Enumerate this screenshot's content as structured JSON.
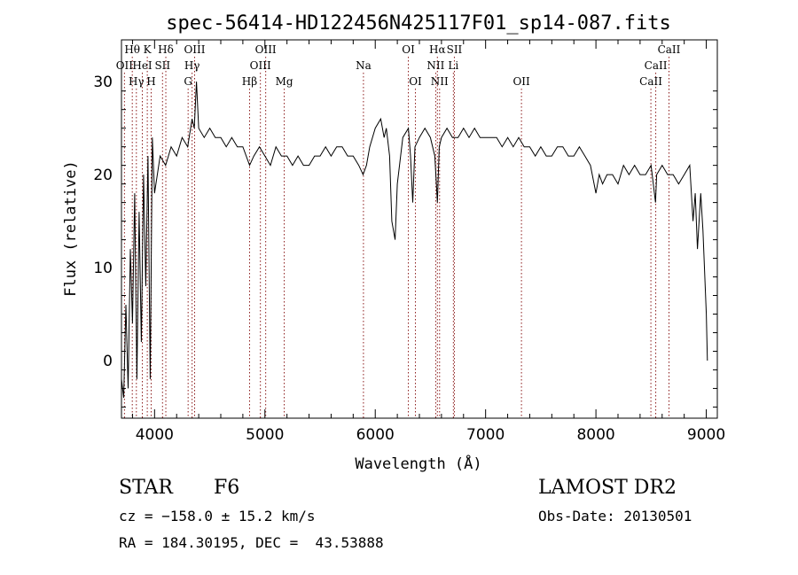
{
  "chart_data": {
    "type": "line",
    "title": "spec-56414-HD122456N425117F01_sp14-087.fits",
    "xlabel": "Wavelength (Å)",
    "ylabel": "Flux (relative)",
    "xlim": [
      3700,
      9100
    ],
    "ylim": [
      -6.2,
      34.5
    ],
    "xticks": [
      4000,
      5000,
      6000,
      7000,
      8000,
      9000
    ],
    "yticks": [
      0,
      10,
      20,
      30
    ],
    "grid": false,
    "series": [
      {
        "x": [
          3700,
          3720,
          3740,
          3760,
          3780,
          3800,
          3820,
          3840,
          3860,
          3880,
          3900,
          3920,
          3940,
          3960,
          3980,
          4000,
          4050,
          4100,
          4150,
          4200,
          4250,
          4300,
          4340,
          4360,
          4380,
          4400,
          4450,
          4500,
          4550,
          4600,
          4650,
          4700,
          4750,
          4800,
          4861,
          4900,
          4950,
          5000,
          5050,
          5100,
          5150,
          5200,
          5250,
          5300,
          5350,
          5400,
          5450,
          5500,
          5550,
          5600,
          5650,
          5700,
          5750,
          5800,
          5850,
          5890,
          5920,
          5950,
          6000,
          6050,
          6080,
          6100,
          6130,
          6150,
          6180,
          6200,
          6250,
          6300,
          6320,
          6340,
          6360,
          6400,
          6450,
          6500,
          6540,
          6563,
          6580,
          6600,
          6650,
          6700,
          6750,
          6800,
          6850,
          6900,
          6950,
          7000,
          7050,
          7100,
          7150,
          7200,
          7250,
          7300,
          7350,
          7400,
          7450,
          7500,
          7550,
          7600,
          7650,
          7700,
          7750,
          7800,
          7850,
          7900,
          7950,
          8000,
          8030,
          8060,
          8100,
          8150,
          8200,
          8250,
          8300,
          8350,
          8400,
          8450,
          8500,
          8540,
          8550,
          8600,
          8650,
          8700,
          8750,
          8800,
          8850,
          8880,
          8900,
          8920,
          8950,
          8970,
          9000,
          9010
        ],
        "y": [
          -2,
          -4,
          6,
          -3,
          12,
          4,
          18,
          -2,
          16,
          2,
          20,
          8,
          22,
          -2,
          24,
          18,
          22,
          21,
          23,
          22,
          24,
          23,
          26,
          25,
          30,
          25,
          24,
          25,
          24,
          24,
          23,
          24,
          23,
          23,
          21,
          22,
          23,
          22,
          21,
          23,
          22,
          22,
          21,
          22,
          21,
          21,
          22,
          22,
          23,
          22,
          23,
          23,
          22,
          22,
          21,
          20,
          21,
          23,
          25,
          26,
          24,
          25,
          22,
          15,
          13,
          19,
          24,
          25,
          22,
          17,
          23,
          24,
          25,
          24,
          22,
          17,
          23,
          24,
          25,
          24,
          24,
          25,
          24,
          25,
          24,
          24,
          24,
          24,
          23,
          24,
          23,
          24,
          23,
          23,
          22,
          23,
          22,
          22,
          23,
          23,
          22,
          22,
          23,
          22,
          21,
          18,
          20,
          19,
          20,
          20,
          19,
          21,
          20,
          21,
          20,
          20,
          21,
          17,
          20,
          21,
          20,
          20,
          19,
          20,
          21,
          15,
          18,
          12,
          18,
          14,
          5,
          0
        ]
      }
    ],
    "line_labels": [
      {
        "label": "Hθ",
        "wavelength": 3798,
        "row": 1
      },
      {
        "label": "K",
        "wavelength": 3934,
        "row": 1
      },
      {
        "label": "Hδ",
        "wavelength": 4102,
        "row": 1
      },
      {
        "label": "OIII",
        "wavelength": 4363,
        "row": 1
      },
      {
        "label": "OIII",
        "wavelength": 5007,
        "row": 1
      },
      {
        "label": "OI",
        "wavelength": 6300,
        "row": 1
      },
      {
        "label": "Hα",
        "wavelength": 6563,
        "row": 1
      },
      {
        "label": "SII",
        "wavelength": 6717,
        "row": 1
      },
      {
        "label": "CaII",
        "wavelength": 8662,
        "row": 1
      },
      {
        "label": "OII",
        "wavelength": 3727,
        "row": 2
      },
      {
        "label": "HeI",
        "wavelength": 3889,
        "row": 2
      },
      {
        "label": "SII",
        "wavelength": 4072,
        "row": 2
      },
      {
        "label": "Hγ",
        "wavelength": 4340,
        "row": 2
      },
      {
        "label": "OIII",
        "wavelength": 4959,
        "row": 2
      },
      {
        "label": "Na",
        "wavelength": 5893,
        "row": 2
      },
      {
        "label": "NII",
        "wavelength": 6548,
        "row": 2
      },
      {
        "label": "Li",
        "wavelength": 6708,
        "row": 2
      },
      {
        "label": "CaII",
        "wavelength": 8542,
        "row": 2
      },
      {
        "label": "Hγ",
        "wavelength": 3835,
        "row": 3
      },
      {
        "label": "H",
        "wavelength": 3969,
        "row": 3
      },
      {
        "label": "G",
        "wavelength": 4304,
        "row": 3
      },
      {
        "label": "Hβ",
        "wavelength": 4861,
        "row": 3
      },
      {
        "label": "Mg",
        "wavelength": 5175,
        "row": 3
      },
      {
        "label": "OI",
        "wavelength": 6364,
        "row": 3
      },
      {
        "label": "NII",
        "wavelength": 6583,
        "row": 3
      },
      {
        "label": "OII",
        "wavelength": 7325,
        "row": 3
      },
      {
        "label": "CaII",
        "wavelength": 8498,
        "row": 3
      }
    ],
    "colors": {
      "spectrum": "#000000",
      "line_markers": "#8b1a1a"
    }
  },
  "info": {
    "object_class": "STAR",
    "subclass": "F6",
    "survey": "LAMOST DR2",
    "velocity": "cz = −158.0 ± 15.2 km/s",
    "obs_date": "Obs-Date: 20130501",
    "coords": "RA = 184.30195, DEC =  43.53888"
  }
}
